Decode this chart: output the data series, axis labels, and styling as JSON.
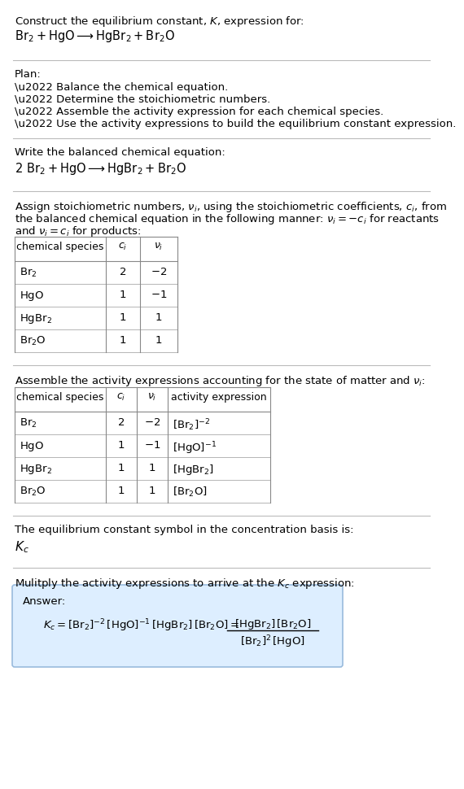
{
  "bg_color": "#ffffff",
  "text_color": "#000000",
  "sep_color": "#bbbbbb",
  "title_line1": "Construct the equilibrium constant, $K$, expression for:",
  "title_line2": "$\\mathrm{Br_2 + HgO \\longrightarrow HgBr_2 + Br_2O}$",
  "plan_header": "Plan:",
  "plan_items": [
    "\\u2022 Balance the chemical equation.",
    "\\u2022 Determine the stoichiometric numbers.",
    "\\u2022 Assemble the activity expression for each chemical species.",
    "\\u2022 Use the activity expressions to build the equilibrium constant expression."
  ],
  "balanced_header": "Write the balanced chemical equation:",
  "balanced_eq": "$\\mathrm{2\\ Br_2 + HgO \\longrightarrow HgBr_2 + Br_2O}$",
  "stoich_line1": "Assign stoichiometric numbers, $\\nu_i$, using the stoichiometric coefficients, $c_i$, from",
  "stoich_line2": "the balanced chemical equation in the following manner: $\\nu_i = -c_i$ for reactants",
  "stoich_line3": "and $\\nu_i = c_i$ for products:",
  "table1_header": [
    "chemical species",
    "$c_i$",
    "$\\nu_i$"
  ],
  "table1_rows": [
    [
      "$\\mathrm{Br_2}$",
      "2",
      "$-2$"
    ],
    [
      "$\\mathrm{HgO}$",
      "1",
      "$-1$"
    ],
    [
      "$\\mathrm{HgBr_2}$",
      "1",
      "1"
    ],
    [
      "$\\mathrm{Br_2O}$",
      "1",
      "1"
    ]
  ],
  "activity_header": "Assemble the activity expressions accounting for the state of matter and $\\nu_i$:",
  "table2_header": [
    "chemical species",
    "$c_i$",
    "$\\nu_i$",
    "activity expression"
  ],
  "table2_rows": [
    [
      "$\\mathrm{Br_2}$",
      "2",
      "$-2$",
      "$[\\mathrm{Br_2}]^{-2}$"
    ],
    [
      "$\\mathrm{HgO}$",
      "1",
      "$-1$",
      "$[\\mathrm{HgO}]^{-1}$"
    ],
    [
      "$\\mathrm{HgBr_2}$",
      "1",
      "1",
      "$[\\mathrm{HgBr_2}]$"
    ],
    [
      "$\\mathrm{Br_2O}$",
      "1",
      "1",
      "$[\\mathrm{Br_2O}]$"
    ]
  ],
  "kc_header": "The equilibrium constant symbol in the concentration basis is:",
  "kc_symbol": "$K_c$",
  "multiply_header": "Mulitply the activity expressions to arrive at the $K_c$ expression:",
  "answer_label": "Answer:",
  "answer_box_bg": "#ddeeff",
  "answer_box_edge": "#99bbdd",
  "kc_eq_left": "$K_c = [\\mathrm{Br_2}]^{-2}\\,[\\mathrm{HgO}]^{-1}\\,[\\mathrm{HgBr_2}]\\,[\\mathrm{Br_2O}] = $",
  "frac_num": "$[\\mathrm{HgBr_2}]\\,[\\mathrm{Br_2O}]$",
  "frac_den": "$[\\mathrm{Br_2}]^2\\,[\\mathrm{HgO}]$"
}
